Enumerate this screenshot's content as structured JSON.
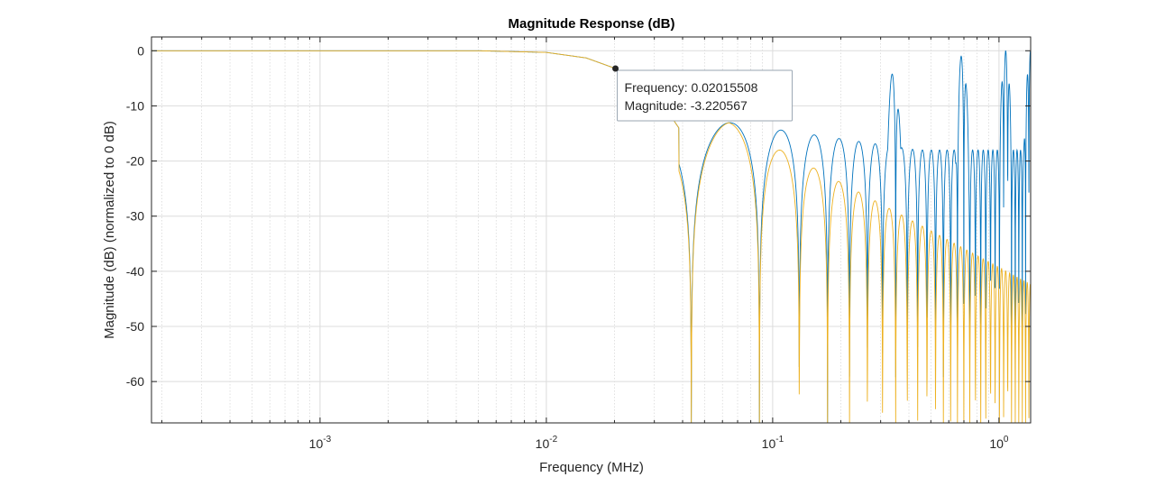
{
  "chart_data": {
    "type": "line",
    "title": "Magnitude Response (dB)",
    "xlabel": "Frequency (MHz)",
    "ylabel": "Magnitude (dB) (normalized to 0 dB)",
    "xscale": "log",
    "xlim": [
      0.00018,
      1.38
    ],
    "ylim": [
      -67.5,
      2.5
    ],
    "yticks": [
      0,
      -10,
      -20,
      -30,
      -40,
      -50,
      -60
    ],
    "ytick_labels": [
      "0",
      "-10",
      "-20",
      "-30",
      "-40",
      "-50",
      "-60"
    ],
    "xticks": [
      0.001,
      0.01,
      0.1,
      1
    ],
    "xtick_labels": [
      {
        "base": "10",
        "exp": "-3"
      },
      {
        "base": "10",
        "exp": "-2"
      },
      {
        "base": "10",
        "exp": "-1"
      },
      {
        "base": "10",
        "exp": "0"
      }
    ],
    "grid": true,
    "minor_grid": true,
    "series": [
      {
        "color": "#0072BD",
        "x": [
          0.0002,
          0.001,
          0.005,
          0.01,
          0.015,
          0.0202,
          0.025,
          0.03,
          0.035,
          0.0385,
          0.044,
          0.05,
          0.057,
          0.064,
          0.072,
          0.08,
          0.088,
          0.096,
          0.11,
          0.125,
          0.133,
          0.15,
          0.165,
          0.2,
          0.225,
          0.25,
          0.3,
          0.345,
          0.4,
          0.46,
          0.52,
          0.6,
          0.69,
          0.8,
          0.95,
          1.07,
          1.2,
          1.38
        ],
        "y": [
          0,
          0,
          0,
          -0.3,
          -1.3,
          -3.22,
          -5.5,
          -8.5,
          -11.5,
          -14,
          -48,
          -20,
          -14,
          -13,
          -14,
          -19,
          -54,
          -20,
          -16.5,
          -19,
          -57,
          -18,
          -15,
          -16.5,
          -63,
          -16.5,
          -13.5,
          0,
          -10,
          -55,
          -13,
          -12,
          0,
          -12,
          -15,
          0,
          -13,
          0
        ]
      },
      {
        "color": "#EDB120",
        "x": [
          0.0002,
          0.001,
          0.005,
          0.01,
          0.015,
          0.0202,
          0.025,
          0.03,
          0.035,
          0.0385,
          0.044,
          0.05,
          0.057,
          0.064,
          0.072,
          0.08,
          0.088,
          0.096,
          0.11,
          0.125,
          0.133,
          0.15,
          0.165,
          0.2,
          0.225,
          0.25,
          0.3,
          0.345,
          0.4,
          0.46,
          0.52,
          0.6,
          0.69,
          0.8,
          0.95,
          1.07,
          1.2,
          1.38
        ],
        "y": [
          0,
          0,
          0,
          -0.3,
          -1.3,
          -3.22,
          -5.5,
          -8.5,
          -11.5,
          -14,
          -48,
          -20,
          -14,
          -13.5,
          -15,
          -20,
          -54,
          -21,
          -18,
          -20,
          -57,
          -21,
          -20.5,
          -23,
          -62,
          -24,
          -26,
          -28,
          -30,
          -67,
          -31,
          -33,
          -34,
          -35,
          -36,
          -37,
          -37,
          -37
        ]
      }
    ],
    "datatip": {
      "x": 0.0202,
      "y": -3.22,
      "line1": "Frequency: 0.02015508",
      "line2": "Magnitude: -3.220567"
    }
  }
}
